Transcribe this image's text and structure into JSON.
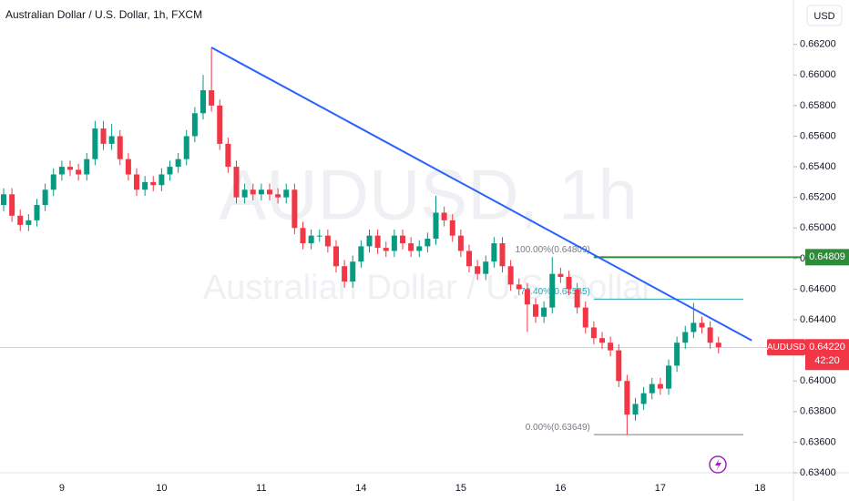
{
  "chart_data": {
    "type": "candlestick",
    "title": "Australian Dollar / U.S. Dollar, 1h, FXCM",
    "currency": "USD",
    "watermark": "AUDUSD, 1h",
    "watermark_subtitle": "Australian Dollar / U.S. Dollar",
    "up_color": "#089981",
    "down_color": "#f23645",
    "categories": [
      null,
      null,
      null,
      null,
      null,
      null,
      null,
      "9",
      null,
      null,
      null,
      null,
      null,
      null,
      null,
      null,
      null,
      null,
      null,
      "10",
      null,
      null,
      null,
      null,
      null,
      null,
      null,
      null,
      null,
      null,
      null,
      "11",
      null,
      null,
      null,
      null,
      null,
      null,
      null,
      null,
      null,
      null,
      null,
      "14",
      null,
      null,
      null,
      null,
      null,
      null,
      null,
      null,
      null,
      null,
      null,
      "15",
      null,
      null,
      null,
      null,
      null,
      null,
      null,
      null,
      null,
      null,
      null,
      "16",
      null,
      null,
      null,
      null,
      null,
      null,
      null,
      null,
      null,
      null,
      null,
      "17",
      null,
      null,
      null,
      null,
      null,
      null,
      null,
      null,
      null,
      null,
      null,
      "18"
    ],
    "open": [
      0.6515,
      0.6522,
      0.6508,
      0.6502,
      0.6505,
      0.6515,
      0.6525,
      0.6535,
      0.654,
      0.6538,
      0.6535,
      0.6545,
      0.6565,
      0.6555,
      0.656,
      0.6545,
      0.6535,
      0.6525,
      0.653,
      0.6528,
      0.6535,
      0.654,
      0.6545,
      0.656,
      0.6575,
      0.659,
      0.658,
      0.6555,
      0.654,
      0.652,
      0.6525,
      0.6522,
      0.6525,
      0.6522,
      0.652,
      0.6525,
      0.65,
      0.649,
      0.6495,
      0.6495,
      0.6488,
      0.6475,
      0.6465,
      0.6478,
      0.6488,
      0.6495,
      0.6487,
      0.6485,
      0.6495,
      0.649,
      0.6485,
      0.6488,
      0.6493,
      0.651,
      0.6505,
      0.6495,
      0.6485,
      0.6475,
      0.647,
      0.6478,
      0.649,
      0.6475,
      0.6463,
      0.646,
      0.645,
      0.6442,
      0.6448,
      0.647,
      0.6468,
      0.646,
      0.6448,
      0.6435,
      0.6428,
      0.6425,
      0.642,
      0.64,
      0.6378,
      0.6385,
      0.6392,
      0.6398,
      0.6395,
      0.641,
      0.6425,
      0.6432,
      0.6438,
      0.6435,
      0.6425,
      null,
      null,
      null,
      null,
      null
    ],
    "high": [
      0.6526,
      0.6526,
      0.6512,
      0.6509,
      0.6519,
      0.6529,
      0.6539,
      0.6544,
      0.6544,
      0.6542,
      0.6549,
      0.657,
      0.657,
      0.6568,
      0.6564,
      0.6549,
      0.6539,
      0.6534,
      0.6534,
      0.6539,
      0.6544,
      0.6549,
      0.6564,
      0.6579,
      0.66,
      0.6618,
      0.6584,
      0.6559,
      0.6544,
      0.6529,
      0.6529,
      0.6529,
      0.6529,
      0.6526,
      0.6529,
      0.6529,
      0.6504,
      0.6499,
      0.6499,
      0.6499,
      0.6492,
      0.6479,
      0.6482,
      0.6492,
      0.6499,
      0.6499,
      0.6491,
      0.6499,
      0.6499,
      0.6494,
      0.6492,
      0.6497,
      0.6521,
      0.6514,
      0.6509,
      0.6499,
      0.6489,
      0.6479,
      0.6482,
      0.6494,
      0.6494,
      0.6479,
      0.6467,
      0.6464,
      0.6454,
      0.6452,
      0.6481,
      0.6474,
      0.6472,
      0.6464,
      0.6452,
      0.6439,
      0.6432,
      0.6429,
      0.6424,
      0.6404,
      0.6389,
      0.6396,
      0.6402,
      0.6402,
      0.6414,
      0.6429,
      0.6436,
      0.6451,
      0.6442,
      0.6439,
      0.6429,
      null,
      null,
      null,
      null,
      null
    ],
    "low": [
      0.6511,
      0.6504,
      0.6498,
      0.6498,
      0.6501,
      0.6511,
      0.6521,
      0.6531,
      0.6534,
      0.6531,
      0.6531,
      0.6541,
      0.6551,
      0.6551,
      0.6541,
      0.6531,
      0.6521,
      0.6521,
      0.6524,
      0.6524,
      0.6531,
      0.6536,
      0.6541,
      0.6556,
      0.6571,
      0.6576,
      0.6551,
      0.6536,
      0.6516,
      0.6516,
      0.6518,
      0.6518,
      0.6518,
      0.6516,
      0.6516,
      0.6496,
      0.6486,
      0.6486,
      0.6491,
      0.6484,
      0.6471,
      0.6461,
      0.6461,
      0.6474,
      0.6484,
      0.6483,
      0.6481,
      0.6481,
      0.6486,
      0.6481,
      0.6481,
      0.6484,
      0.6489,
      0.6501,
      0.6491,
      0.6481,
      0.6471,
      0.6466,
      0.6466,
      0.6474,
      0.6471,
      0.6459,
      0.6456,
      0.6432,
      0.6438,
      0.6438,
      0.6444,
      0.6464,
      0.6456,
      0.6444,
      0.6431,
      0.6424,
      0.6421,
      0.6416,
      0.6396,
      0.6365,
      0.6374,
      0.6381,
      0.6388,
      0.6391,
      0.6391,
      0.6406,
      0.6421,
      0.6428,
      0.6431,
      0.6421,
      0.6418,
      null,
      null,
      null,
      null,
      null
    ],
    "close": [
      0.6522,
      0.6508,
      0.6502,
      0.6505,
      0.6515,
      0.6525,
      0.6535,
      0.654,
      0.6538,
      0.6535,
      0.6545,
      0.6565,
      0.6555,
      0.656,
      0.6545,
      0.6535,
      0.6525,
      0.653,
      0.6528,
      0.6535,
      0.654,
      0.6545,
      0.656,
      0.6575,
      0.659,
      0.658,
      0.6555,
      0.654,
      0.652,
      0.6525,
      0.6522,
      0.6525,
      0.6522,
      0.652,
      0.6525,
      0.65,
      0.649,
      0.6495,
      0.6495,
      0.6488,
      0.6475,
      0.6465,
      0.6478,
      0.6488,
      0.6495,
      0.6487,
      0.6485,
      0.6495,
      0.649,
      0.6485,
      0.6488,
      0.6493,
      0.651,
      0.6505,
      0.6495,
      0.6485,
      0.6475,
      0.647,
      0.6478,
      0.649,
      0.6475,
      0.6463,
      0.646,
      0.645,
      0.6442,
      0.6448,
      0.647,
      0.6468,
      0.646,
      0.6448,
      0.6435,
      0.6428,
      0.6425,
      0.642,
      0.64,
      0.6378,
      0.6385,
      0.6392,
      0.6398,
      0.6395,
      0.641,
      0.6425,
      0.6432,
      0.6438,
      0.6435,
      0.6425,
      0.6422,
      null,
      null,
      null,
      null,
      null
    ],
    "ylim": [
      0.634,
      0.6649
    ],
    "yticks": [
      {
        "value": 0.634,
        "label": "0.63400"
      },
      {
        "value": 0.636,
        "label": "0.63600"
      },
      {
        "value": 0.638,
        "label": "0.63800"
      },
      {
        "value": 0.64,
        "label": "0.64000"
      },
      {
        "value": 0.642,
        "label": "0.64200"
      },
      {
        "value": 0.644,
        "label": "0.64400"
      },
      {
        "value": 0.646,
        "label": "0.64600"
      },
      {
        "value": 0.648,
        "label": "0.64800"
      },
      {
        "value": 0.65,
        "label": "0.65000"
      },
      {
        "value": 0.652,
        "label": "0.65200"
      },
      {
        "value": 0.654,
        "label": "0.65400"
      },
      {
        "value": 0.656,
        "label": "0.65600"
      },
      {
        "value": 0.658,
        "label": "0.65800"
      },
      {
        "value": 0.66,
        "label": "0.66000"
      },
      {
        "value": 0.662,
        "label": "0.66200"
      }
    ],
    "last_price": {
      "symbol": "AUDUSD",
      "value": 0.6422,
      "label": "0.64220",
      "countdown": "42:20"
    },
    "level": {
      "value": 0.64809,
      "label": "0.64809",
      "color": "#2e8b3a"
    },
    "trendline": {
      "color": "#2962ff",
      "start": [
        25,
        0.6618
      ],
      "end": [
        90,
        0.64265
      ]
    },
    "fib": {
      "start": 71,
      "end": 89,
      "levels": [
        {
          "value": 0.64809,
          "label": "100.00%(0.64809)",
          "color": "#787b86"
        },
        {
          "value": 0.64535,
          "label": "76.40%(0.64535)",
          "color": "#26a6b8"
        },
        {
          "value": 0.63649,
          "label": "0.00%(0.63649)",
          "color": "#787b86"
        }
      ]
    }
  }
}
